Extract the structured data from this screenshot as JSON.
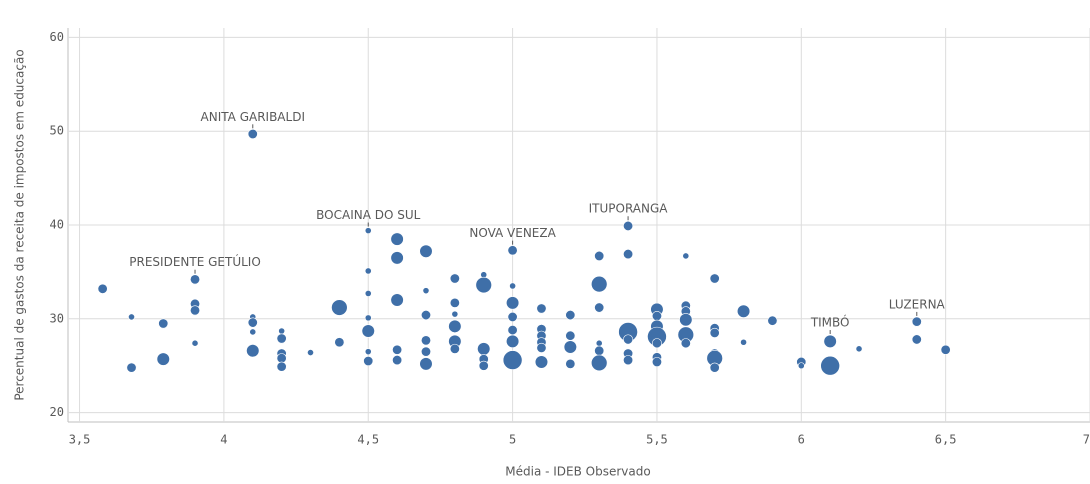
{
  "chart_data": {
    "type": "scatter",
    "color": "#3f6fa8",
    "x_label": "Média - IDEB Observado",
    "y_label": "Percentual de gastos da receita de impostos em educação",
    "xlim": [
      3.46,
      7.0
    ],
    "ylim": [
      19,
      61
    ],
    "xticks": [
      {
        "value": 3.5,
        "label": "3,5"
      },
      4,
      {
        "value": 4.5,
        "label": "4,5"
      },
      5,
      {
        "value": 5.5,
        "label": "5,5"
      },
      6,
      {
        "value": 6.5,
        "label": "6,5"
      },
      7
    ],
    "yticks": [
      20,
      30,
      40,
      50,
      60
    ],
    "grid": true,
    "x": [
      3.58,
      3.68,
      3.68,
      3.79,
      3.79,
      3.9,
      3.9,
      3.9,
      3.9,
      4.1,
      4.1,
      4.1,
      4.1,
      4.1,
      4.2,
      4.2,
      4.2,
      4.2,
      4.2,
      4.3,
      4.4,
      4.4,
      4.5,
      4.5,
      4.5,
      4.5,
      4.5,
      4.5,
      4.5,
      4.6,
      4.6,
      4.6,
      4.6,
      4.6,
      4.7,
      4.7,
      4.7,
      4.7,
      4.7,
      4.7,
      4.8,
      4.8,
      4.8,
      4.8,
      4.8,
      4.8,
      4.9,
      4.9,
      4.9,
      4.9,
      4.9,
      5,
      5,
      5,
      5,
      5,
      5,
      5,
      5.1,
      5.1,
      5.1,
      5.1,
      5.1,
      5.1,
      5.2,
      5.2,
      5.2,
      5.2,
      5.3,
      5.3,
      5.3,
      5.3,
      5.3,
      5.3,
      5.4,
      5.4,
      5.4,
      5.4,
      5.4,
      5.4,
      5.5,
      5.5,
      5.5,
      5.5,
      5.5,
      5.5,
      5.5,
      5.6,
      5.6,
      5.6,
      5.6,
      5.6,
      5.6,
      5.7,
      5.7,
      5.7,
      5.7,
      5.7,
      5.7,
      5.8,
      5.8,
      5.9,
      6,
      6,
      6.1,
      6.1,
      6.2,
      6.4,
      6.4,
      6.5
    ],
    "values": [
      33.2,
      30.2,
      24.8,
      29.5,
      25.7,
      34.2,
      31.6,
      30.9,
      27.4,
      49.7,
      30.2,
      29.6,
      28.6,
      26.6,
      28.7,
      27.9,
      26.3,
      25.8,
      24.9,
      26.4,
      31.2,
      27.5,
      39.4,
      35.1,
      32.7,
      30.1,
      28.7,
      26.5,
      25.5,
      38.5,
      36.5,
      32.0,
      26.7,
      25.6,
      37.2,
      33.0,
      30.4,
      27.7,
      26.5,
      25.2,
      34.3,
      31.7,
      30.5,
      29.2,
      27.6,
      26.8,
      34.7,
      33.6,
      26.8,
      25.7,
      25.0,
      37.3,
      33.5,
      31.7,
      30.2,
      28.8,
      27.6,
      25.6,
      31.1,
      28.9,
      28.2,
      27.5,
      26.9,
      25.4,
      30.4,
      28.2,
      27.0,
      25.2,
      36.7,
      33.7,
      31.2,
      27.4,
      26.6,
      25.3,
      39.9,
      36.9,
      28.6,
      27.8,
      26.3,
      25.6,
      31.0,
      30.3,
      29.2,
      28.1,
      27.4,
      25.9,
      25.4,
      36.7,
      31.4,
      30.8,
      29.9,
      28.3,
      27.4,
      34.3,
      29.0,
      28.5,
      26.3,
      25.8,
      24.8,
      30.8,
      27.5,
      29.8,
      25.4,
      25.0,
      27.6,
      25.0,
      26.8,
      29.7,
      27.8,
      26.7
    ],
    "sizes": [
      2,
      1,
      2,
      2,
      3,
      2,
      2,
      2,
      1,
      2,
      1,
      2,
      1,
      3,
      1,
      2,
      2,
      2,
      2,
      1,
      4,
      2,
      1,
      1,
      1,
      1,
      3,
      1,
      2,
      3,
      3,
      3,
      2,
      2,
      3,
      1,
      2,
      2,
      2,
      3,
      2,
      2,
      1,
      3,
      3,
      2,
      1,
      4,
      3,
      2,
      2,
      2,
      1,
      3,
      2,
      2,
      3,
      5,
      2,
      2,
      2,
      2,
      2,
      3,
      2,
      2,
      3,
      2,
      2,
      4,
      2,
      1,
      2,
      4,
      2,
      2,
      5,
      2,
      2,
      2,
      3,
      2,
      3,
      5,
      2,
      2,
      2,
      1,
      2,
      2,
      3,
      4,
      2,
      2,
      2,
      2,
      2,
      4,
      2,
      3,
      1,
      2,
      2,
      1,
      3,
      5,
      1,
      2,
      2,
      2
    ],
    "point_labels": [
      null,
      null,
      null,
      null,
      null,
      "PRESIDENTE GETÚLIO",
      null,
      null,
      null,
      "ANITA GARIBALDI",
      null,
      null,
      null,
      null,
      null,
      null,
      null,
      null,
      null,
      null,
      null,
      null,
      "BOCAINA DO SUL",
      null,
      null,
      null,
      null,
      null,
      null,
      null,
      null,
      null,
      null,
      null,
      null,
      null,
      null,
      null,
      null,
      null,
      null,
      null,
      null,
      null,
      null,
      null,
      null,
      null,
      null,
      null,
      null,
      "NOVA VENEZA",
      null,
      null,
      null,
      null,
      null,
      null,
      null,
      null,
      null,
      null,
      null,
      null,
      null,
      null,
      null,
      null,
      null,
      null,
      null,
      null,
      null,
      null,
      "ITUPORANGA",
      null,
      null,
      null,
      null,
      null,
      null,
      null,
      null,
      null,
      null,
      null,
      null,
      null,
      null,
      null,
      null,
      null,
      null,
      null,
      null,
      null,
      null,
      null,
      null,
      null,
      null,
      null,
      null,
      null,
      "TIMBÓ",
      null,
      null,
      "LUZERNA",
      null,
      null
    ]
  }
}
